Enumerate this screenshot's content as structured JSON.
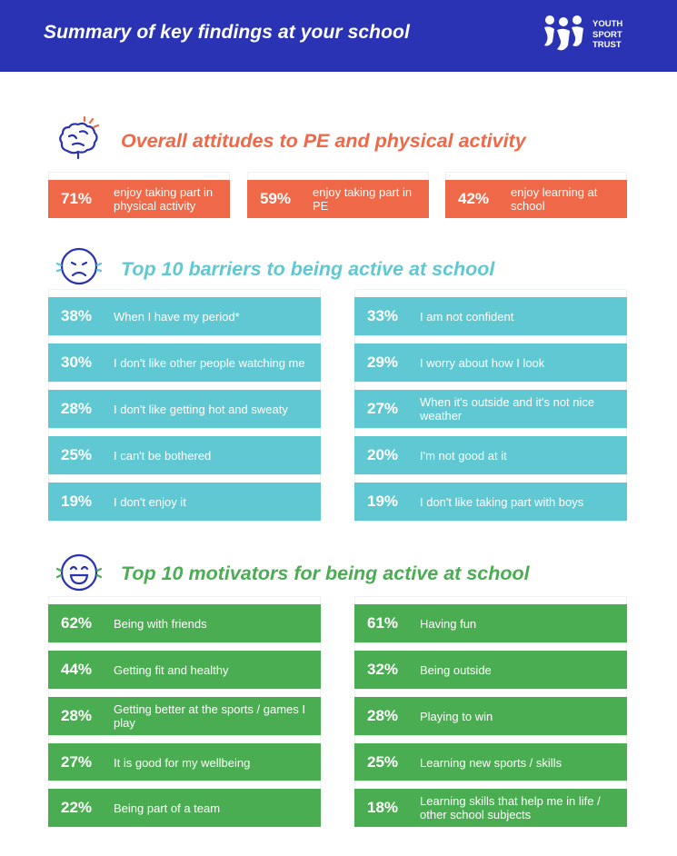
{
  "header": {
    "title": "Summary of key findings at your school",
    "logo_lines": [
      "YOUTH",
      "SPORT",
      "TRUST"
    ]
  },
  "colors": {
    "header_bg": "#2a33b4",
    "attitudes": "#ef6848",
    "barriers": "#5fc8d3",
    "motivators": "#4bad52"
  },
  "attitudes": {
    "heading": "Overall attitudes to PE and physical activity",
    "icon": "brain-icon",
    "items": [
      {
        "pct": "71%",
        "label": "enjoy taking part in physical activity"
      },
      {
        "pct": "59%",
        "label": "enjoy taking part in PE"
      },
      {
        "pct": "42%",
        "label": "enjoy learning at school"
      }
    ]
  },
  "barriers": {
    "heading": "Top 10 barriers to being active at school",
    "icon": "sad-face-icon",
    "left": [
      {
        "pct": "38%",
        "label": "When I have my period*"
      },
      {
        "pct": "30%",
        "label": "I don't like other people watching me"
      },
      {
        "pct": "28%",
        "label": "I don't like getting hot and sweaty"
      },
      {
        "pct": "25%",
        "label": "I can't be bothered"
      },
      {
        "pct": "19%",
        "label": "I don't enjoy it"
      }
    ],
    "right": [
      {
        "pct": "33%",
        "label": "I am not confident"
      },
      {
        "pct": "29%",
        "label": "I worry about how I look"
      },
      {
        "pct": "27%",
        "label": "When it's outside and it's not nice weather"
      },
      {
        "pct": "20%",
        "label": "I'm not good at it"
      },
      {
        "pct": "19%",
        "label": "I don't like taking part with boys"
      }
    ]
  },
  "motivators": {
    "heading": "Top 10 motivators for being active at school",
    "icon": "happy-face-icon",
    "left": [
      {
        "pct": "62%",
        "label": "Being with friends"
      },
      {
        "pct": "44%",
        "label": "Getting fit and healthy"
      },
      {
        "pct": "28%",
        "label": "Getting better at the sports / games I play"
      },
      {
        "pct": "27%",
        "label": "It is good for my wellbeing"
      },
      {
        "pct": "22%",
        "label": "Being part of a team"
      }
    ],
    "right": [
      {
        "pct": "61%",
        "label": "Having fun"
      },
      {
        "pct": "32%",
        "label": "Being outside"
      },
      {
        "pct": "28%",
        "label": "Playing to win"
      },
      {
        "pct": "25%",
        "label": "Learning new sports / skills"
      },
      {
        "pct": "18%",
        "label": "Learning skills that help me in life / other school subjects"
      }
    ]
  }
}
